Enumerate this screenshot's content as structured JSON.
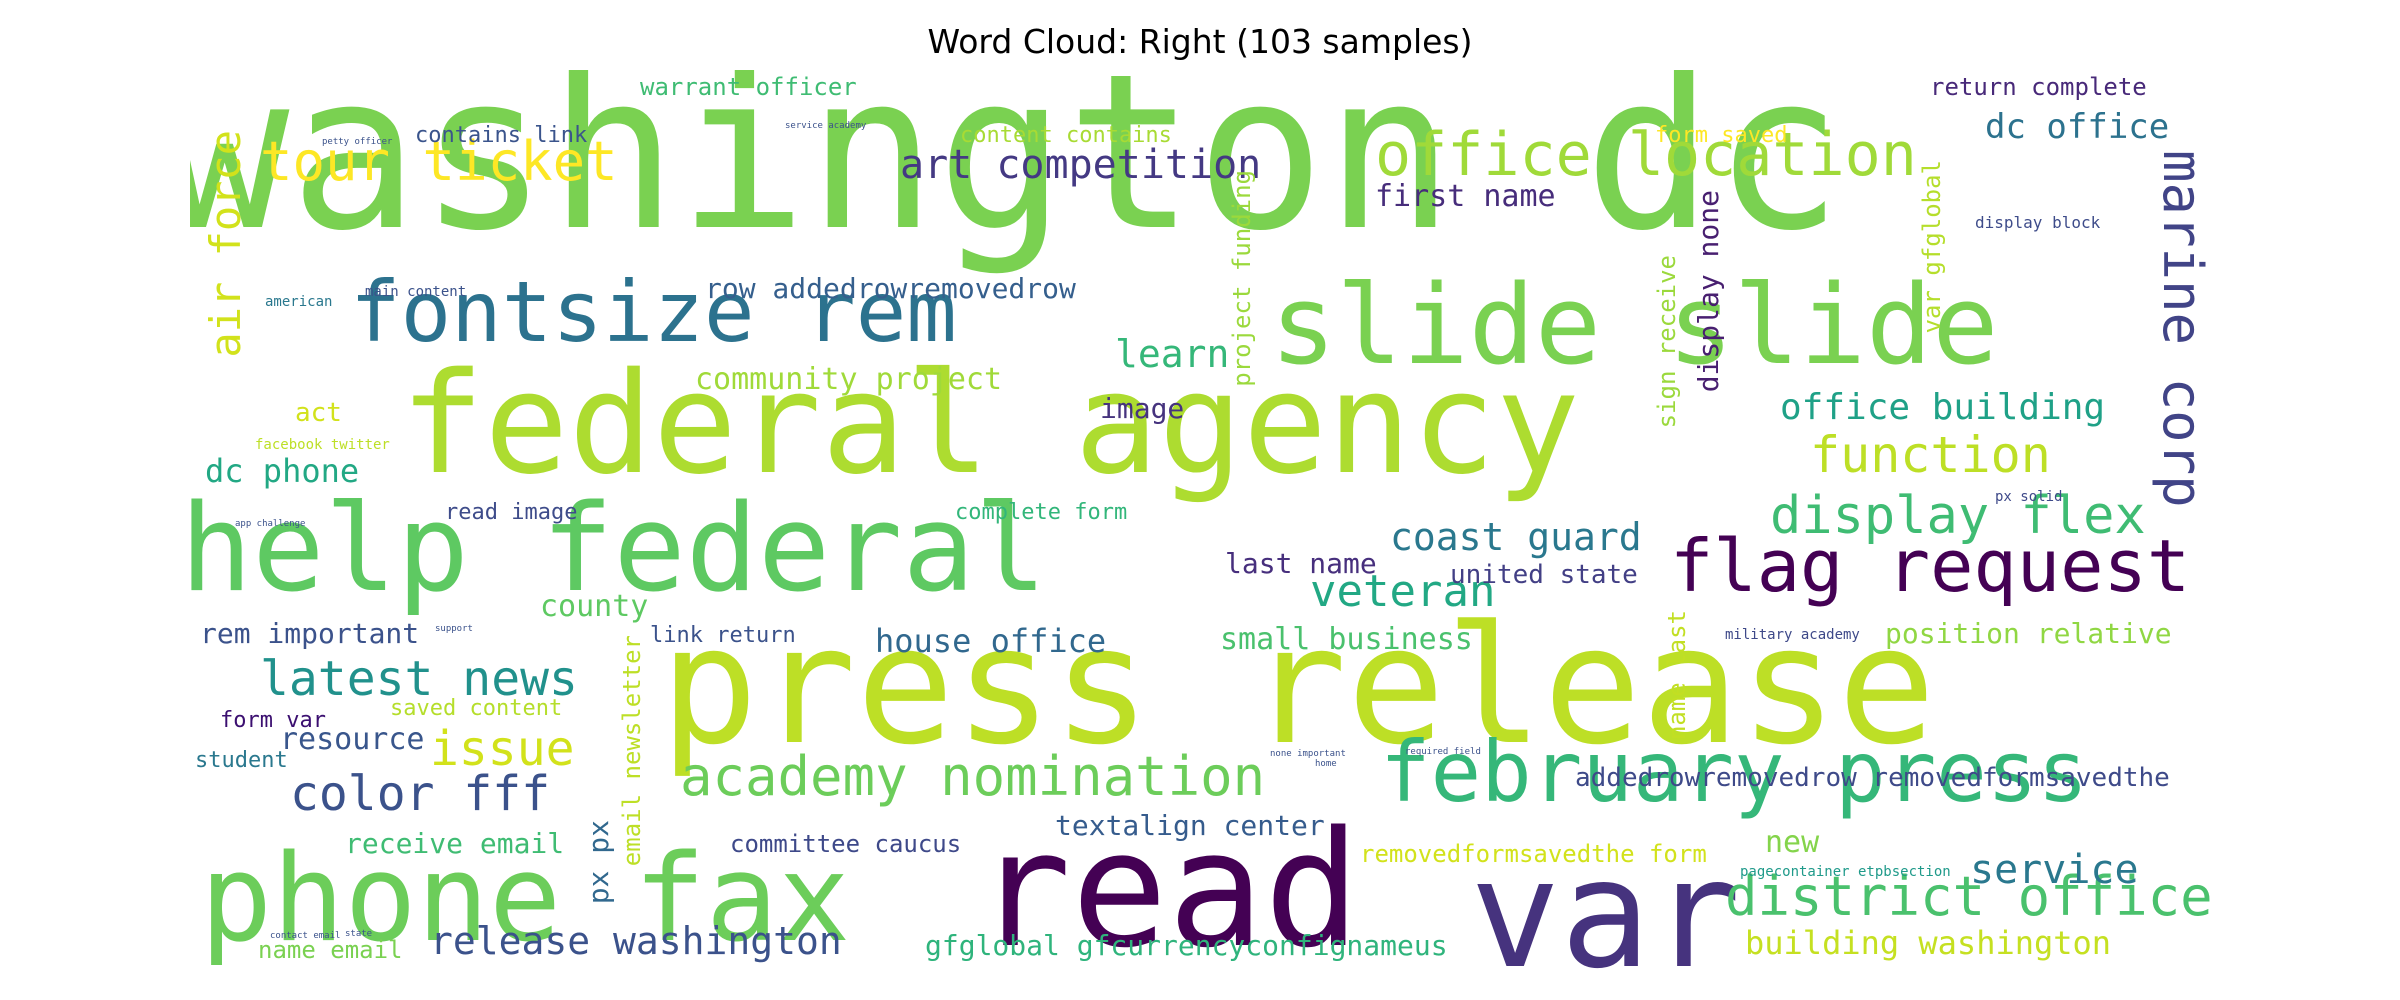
{
  "title": "Word Cloud: Right (103 samples)",
  "words": [
    {
      "text": "washington dc",
      "color": "#7ad151"
    },
    {
      "text": "press release",
      "color": "#bddf26"
    },
    {
      "text": "federal agency",
      "color": "#addc30"
    },
    {
      "text": "help federal",
      "color": "#5ec962"
    },
    {
      "text": "read",
      "color": "#440154"
    },
    {
      "text": "var",
      "color": "#46337e"
    },
    {
      "text": "phone fax",
      "color": "#6ccd5a"
    },
    {
      "text": "slide slide",
      "color": "#7ad151"
    },
    {
      "text": "fontsize rem",
      "color": "#2c728e"
    },
    {
      "text": "february press",
      "color": "#35b779"
    },
    {
      "text": "flag request",
      "color": "#440154"
    },
    {
      "text": "office location",
      "color": "#a0da39"
    },
    {
      "text": "tour ticket",
      "color": "#fde725"
    },
    {
      "text": "academy nomination",
      "color": "#6ccd5a"
    },
    {
      "text": "district office",
      "color": "#4ac16d"
    },
    {
      "text": "display flex",
      "color": "#3fbc73"
    },
    {
      "text": "marine corp",
      "color": "#414487"
    },
    {
      "text": "latest news",
      "color": "#21918c"
    },
    {
      "text": "color fff",
      "color": "#3b528b"
    },
    {
      "text": "veteran",
      "color": "#22a884"
    },
    {
      "text": "art competition",
      "color": "#443983"
    },
    {
      "text": "function",
      "color": "#bddf26"
    },
    {
      "text": "issue",
      "color": "#d2e21b"
    },
    {
      "text": "coast guard",
      "color": "#2a788e"
    },
    {
      "text": "air force",
      "color": "#d2e21b"
    },
    {
      "text": "release washington",
      "color": "#3b528b"
    },
    {
      "text": "office building",
      "color": "#1fa187"
    },
    {
      "text": "service",
      "color": "#2a788e"
    },
    {
      "text": "building washington",
      "color": "#c5e021"
    },
    {
      "text": "dc office",
      "color": "#2c728e"
    },
    {
      "text": "learn",
      "color": "#35b779"
    },
    {
      "text": "dc phone",
      "color": "#22a884"
    },
    {
      "text": "community project",
      "color": "#a0da39"
    },
    {
      "text": "house office",
      "color": "#31688e"
    },
    {
      "text": "small business",
      "color": "#4ac16d"
    },
    {
      "text": "textalign center",
      "color": "#365c8d"
    },
    {
      "text": "gfglobal gfcurrencyconfignameus",
      "color": "#2fb47c"
    },
    {
      "text": "addedrowremovedrow removedformsavedthe",
      "color": "#3e4a89"
    },
    {
      "text": "row addedrowremovedrow",
      "color": "#355f8d"
    },
    {
      "text": "display none",
      "color": "#481f70"
    },
    {
      "text": "last name",
      "color": "#472f7d"
    },
    {
      "text": "county",
      "color": "#5ec962"
    },
    {
      "text": "resource",
      "color": "#39568c"
    },
    {
      "text": "receive email",
      "color": "#3fbc73"
    },
    {
      "text": "committee caucus",
      "color": "#3e4989"
    },
    {
      "text": "rem important",
      "color": "#3b528b"
    },
    {
      "text": "first name",
      "color": "#472d7b"
    },
    {
      "text": "image",
      "color": "#46337e"
    },
    {
      "text": "united state",
      "color": "#423f85"
    },
    {
      "text": "position relative",
      "color": "#90d743"
    },
    {
      "text": "removedformsavedthe form",
      "color": "#d2e21b"
    },
    {
      "text": "new",
      "color": "#84d44b"
    },
    {
      "text": "px px",
      "color": "#31688e"
    },
    {
      "text": "name email",
      "color": "#7ad151"
    },
    {
      "text": "email newsletter",
      "color": "#bddf26"
    },
    {
      "text": "sign receive",
      "color": "#9bd93c"
    },
    {
      "text": "project funding",
      "color": "#9bd93c"
    },
    {
      "text": "var gfglobal",
      "color": "#b5de2b"
    },
    {
      "text": "name last",
      "color": "#c2df23"
    },
    {
      "text": "contains link",
      "color": "#3a548c"
    },
    {
      "text": "content contains",
      "color": "#a8db34"
    },
    {
      "text": "warrant officer",
      "color": "#3fbc73"
    },
    {
      "text": "form saved",
      "color": "#fde725"
    },
    {
      "text": "return complete",
      "color": "#482979"
    },
    {
      "text": "read image",
      "color": "#3e4c8a"
    },
    {
      "text": "complete form",
      "color": "#32b67a"
    },
    {
      "text": "act",
      "color": "#d2e21b"
    },
    {
      "text": "saved content",
      "color": "#b5de2b"
    },
    {
      "text": "form var",
      "color": "#3b0f70"
    },
    {
      "text": "student",
      "color": "#2a788e"
    },
    {
      "text": "link return",
      "color": "#3b528b"
    },
    {
      "text": "pagecontainer etpbsection",
      "color": "#1f9a8a"
    },
    {
      "text": "military academy",
      "color": "#3e4989"
    },
    {
      "text": "display block",
      "color": "#3e4c8a"
    },
    {
      "text": "main content",
      "color": "#3b528b"
    },
    {
      "text": "american",
      "color": "#2a788e"
    },
    {
      "text": "facebook twitter",
      "color": "#bddf26"
    },
    {
      "text": "px solid",
      "color": "#3e4989"
    },
    {
      "text": "petty officer",
      "color": "#3b528b"
    },
    {
      "text": "service academy",
      "color": "#3b528b"
    },
    {
      "text": "app challenge",
      "color": "#3b528b"
    },
    {
      "text": "none important",
      "color": "#3b528b"
    },
    {
      "text": "required field",
      "color": "#3b528b"
    },
    {
      "text": "contact email",
      "color": "#3b528b"
    },
    {
      "text": "state",
      "color": "#3b528b"
    },
    {
      "text": "support",
      "color": "#3b528b"
    },
    {
      "text": "home",
      "color": "#3b528b"
    }
  ]
}
